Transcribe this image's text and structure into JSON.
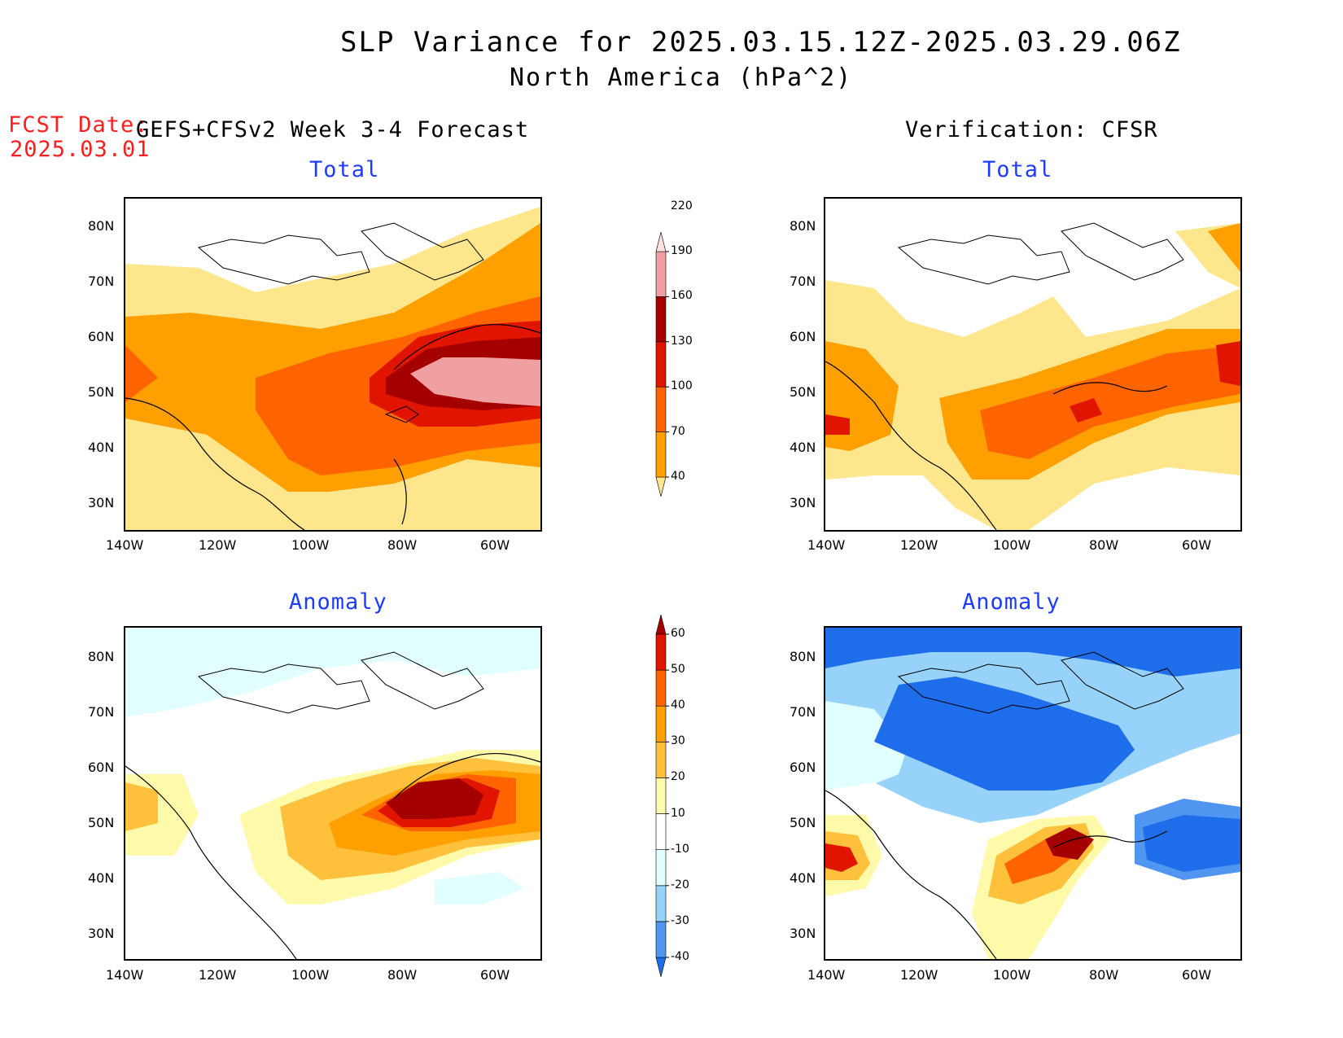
{
  "title": "SLP Variance for 2025.03.15.12Z-2025.03.29.06Z",
  "subtitle": "North America (hPa^2)",
  "fcst_date_label": "FCST Date:",
  "fcst_date_value": "2025.03.01",
  "left_header": "GEFS+CFSv2 Week 3-4 Forecast",
  "right_header": "Verification: CFSR",
  "panel_titles": {
    "top_left": "Total",
    "top_right": "Total",
    "bottom_left": "Anomaly",
    "bottom_right": "Anomaly"
  },
  "lat_ticks": [
    "80N",
    "70N",
    "60N",
    "50N",
    "40N",
    "30N"
  ],
  "lon_ticks": [
    "140W",
    "120W",
    "100W",
    "80W",
    "60W"
  ],
  "total_colorbar": {
    "levels": [
      "40",
      "70",
      "100",
      "130",
      "160",
      "190",
      "220"
    ],
    "colors": [
      "#fee68c",
      "#ffa000",
      "#ff6400",
      "#e11400",
      "#a50000",
      "#f0a0a0",
      "#fde0e0"
    ]
  },
  "anomaly_colorbar": {
    "levels": [
      "-40",
      "-30",
      "-20",
      "-10",
      "10",
      "20",
      "30",
      "40",
      "50",
      "60"
    ],
    "colors": [
      "#1e6eeb",
      "#5096f0",
      "#96d2fa",
      "#e1ffff",
      "#ffffff",
      "#fffaaa",
      "#ffc03c",
      "#ffa000",
      "#ff6400",
      "#e11400",
      "#a50000"
    ]
  }
}
